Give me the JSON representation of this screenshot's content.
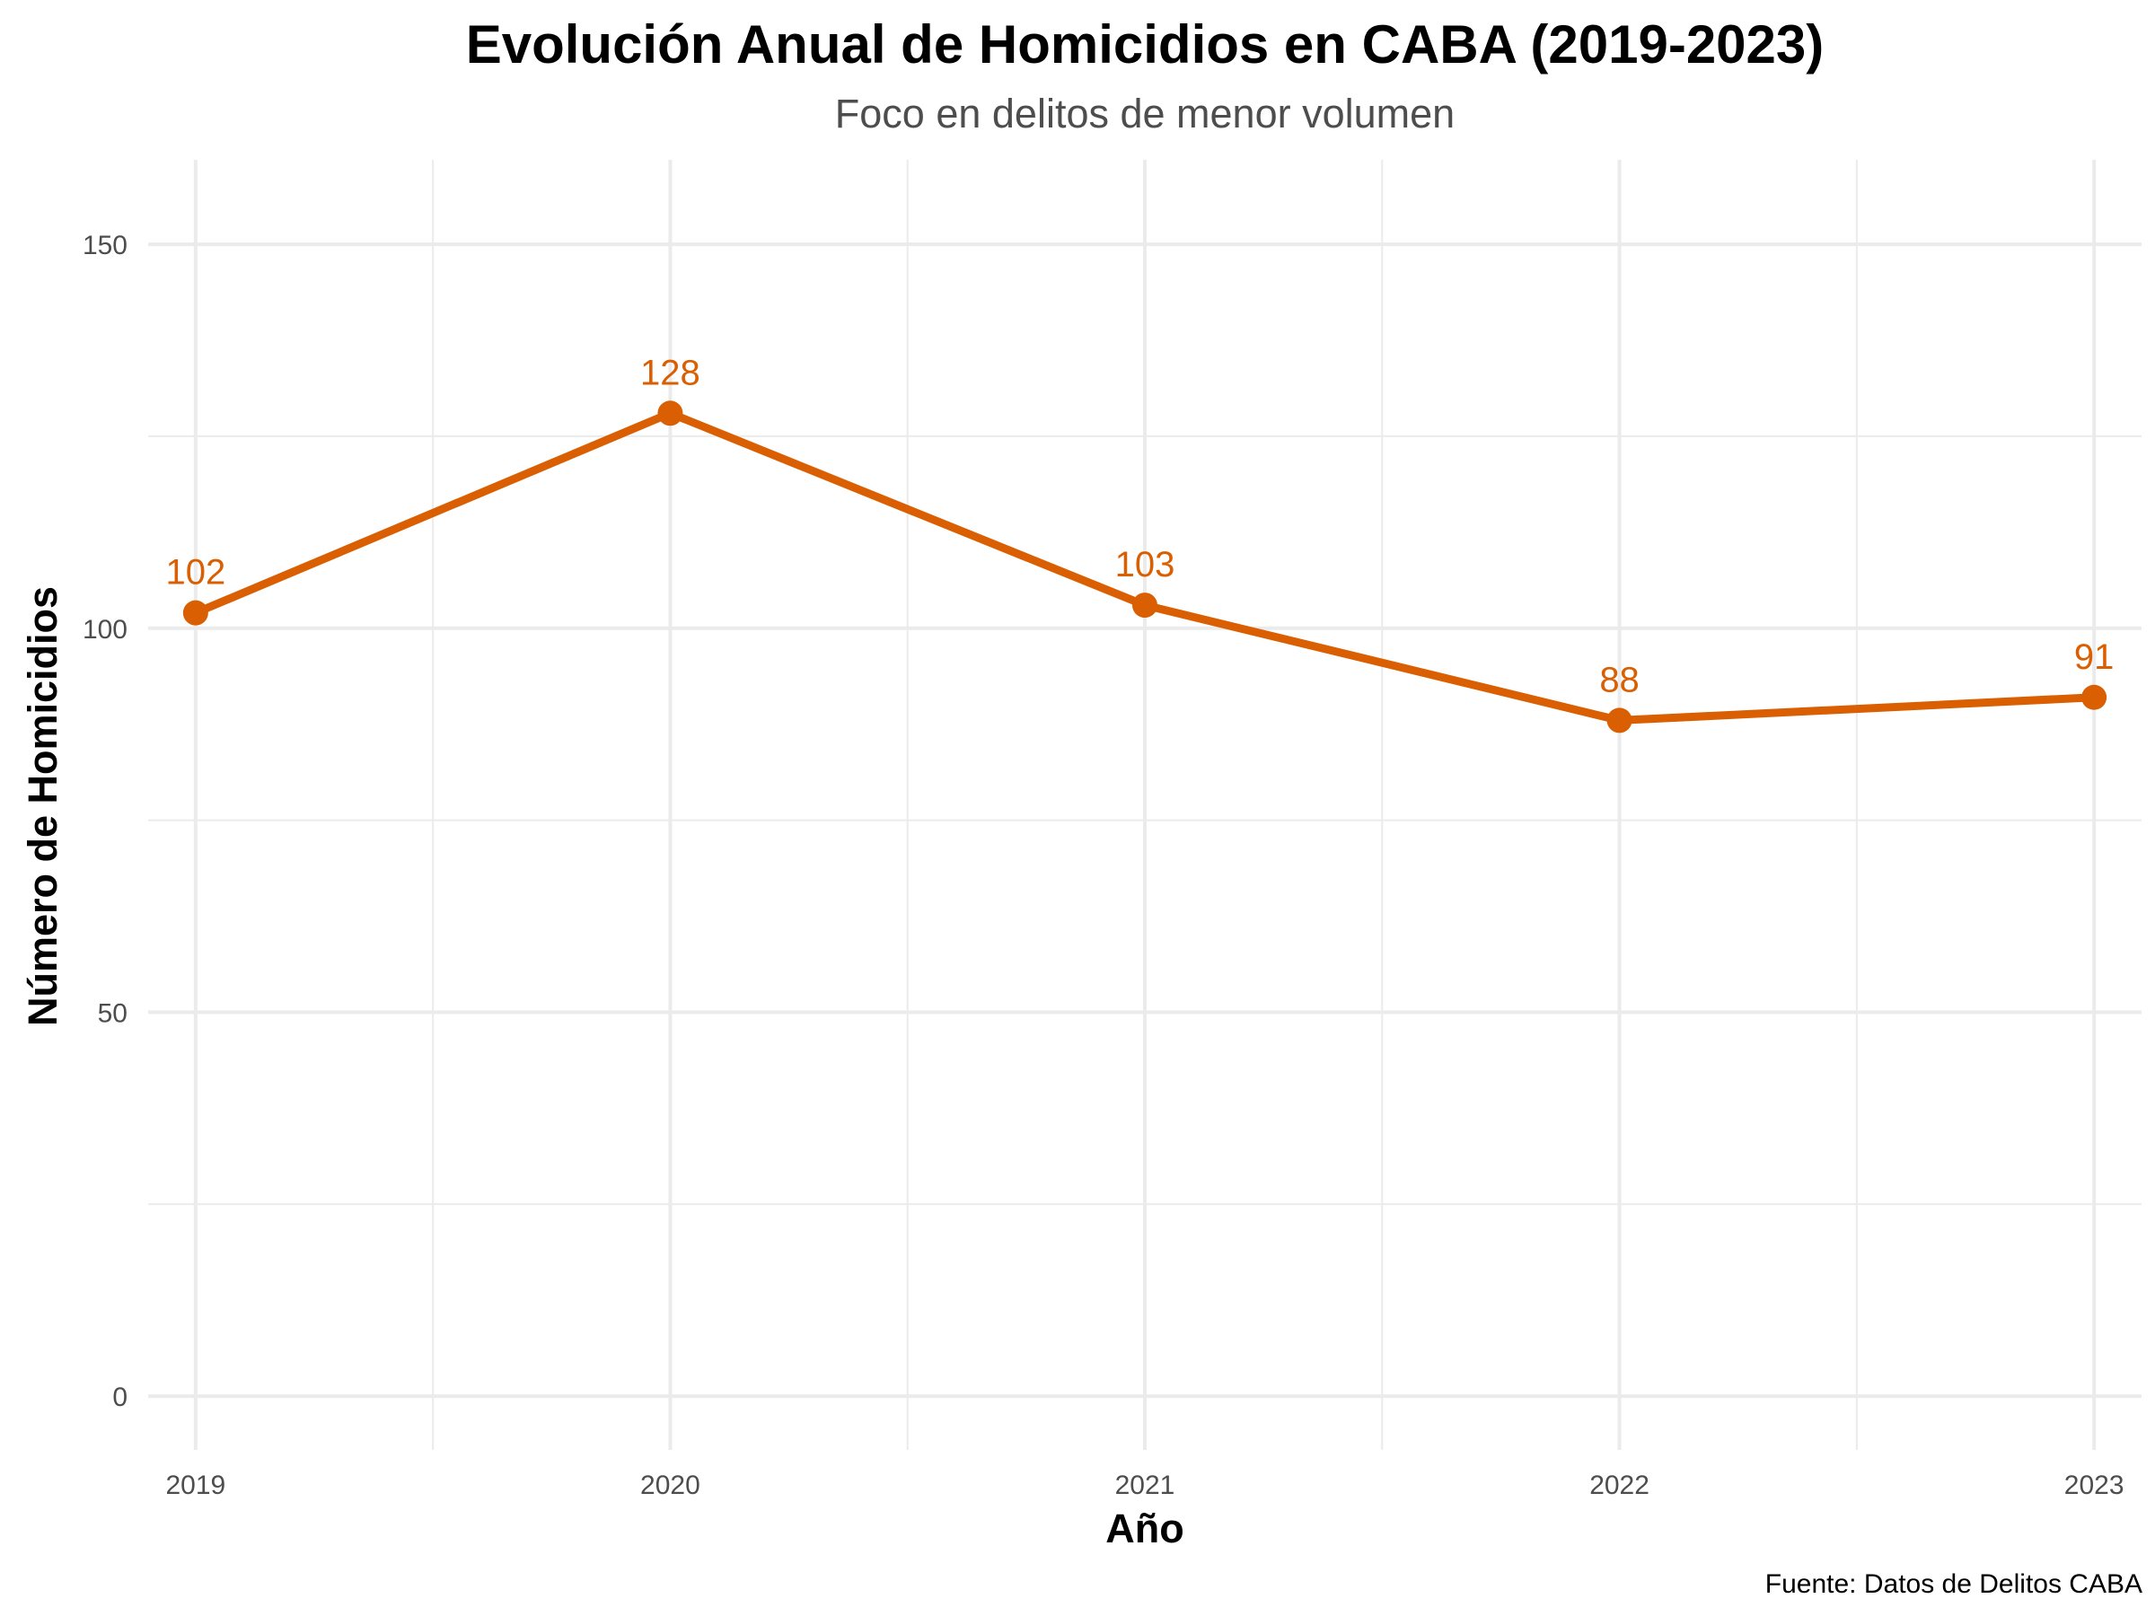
{
  "chart_data": {
    "type": "line",
    "title": "Evolución Anual de Homicidios en CABA (2019-2023)",
    "subtitle": "Foco en delitos de menor volumen",
    "xlabel": "Año",
    "ylabel": "Número de Homicidios",
    "caption": "Fuente: Datos de Delitos CABA",
    "x": [
      "2019",
      "2020",
      "2021",
      "2022",
      "2023"
    ],
    "series": [
      {
        "values": [
          102,
          128,
          103,
          88,
          91
        ]
      }
    ],
    "ylim": [
      -7,
      161
    ],
    "yticks": [
      0,
      50,
      100,
      150
    ],
    "grid": true,
    "legend": "none",
    "colors": {
      "line": "#d95f02",
      "grid": "#ebebeb",
      "tick_text": "#4d4d4d"
    }
  }
}
